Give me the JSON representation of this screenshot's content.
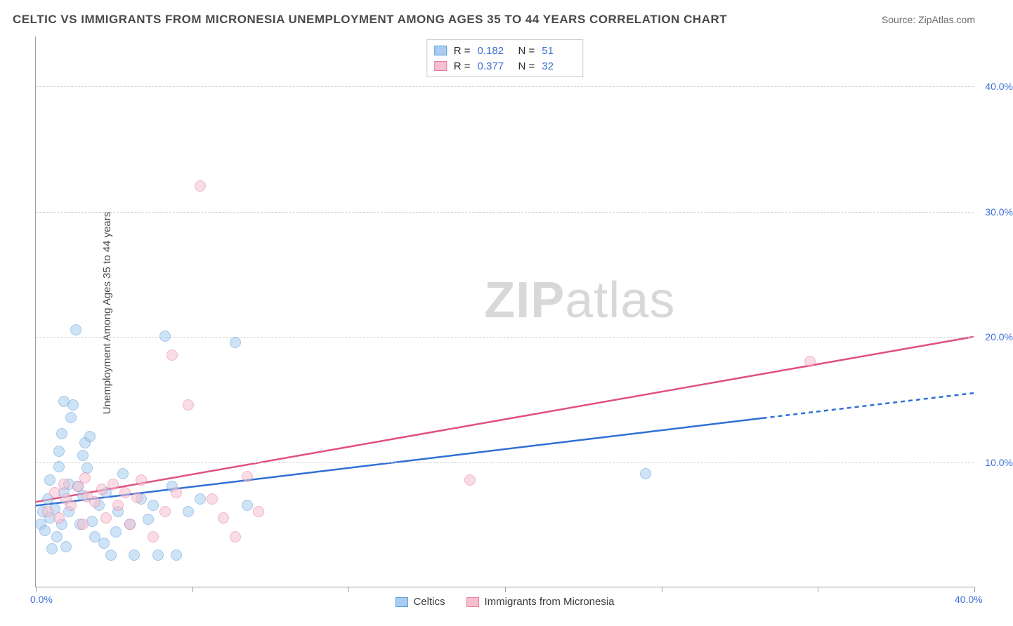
{
  "title": "CELTIC VS IMMIGRANTS FROM MICRONESIA UNEMPLOYMENT AMONG AGES 35 TO 44 YEARS CORRELATION CHART",
  "source": "Source: ZipAtlas.com",
  "ylabel": "Unemployment Among Ages 35 to 44 years",
  "watermark_a": "ZIP",
  "watermark_b": "atlas",
  "chart": {
    "type": "scatter",
    "xlim": [
      0,
      40
    ],
    "ylim": [
      0,
      44
    ],
    "x_tick_positions": [
      0,
      6.67,
      13.33,
      20,
      26.67,
      33.33,
      40
    ],
    "x_labels": {
      "first": "0.0%",
      "last": "40.0%"
    },
    "y_gridlines": [
      10,
      20,
      30,
      40
    ],
    "y_labels": [
      "10.0%",
      "20.0%",
      "30.0%",
      "40.0%"
    ],
    "background_color": "#ffffff",
    "grid_color": "#d0d0d0",
    "axis_color": "#a0a0a0",
    "tick_label_color": "#3d6fd6",
    "marker_radius": 8,
    "marker_opacity": 0.55,
    "series": [
      {
        "name": "Celtics",
        "color_fill": "#a9cdf0",
        "color_stroke": "#5a9bdc",
        "r": 0.182,
        "n": 51,
        "trend": {
          "x1": 0,
          "y1": 6.5,
          "x2": 31,
          "y2": 13.5,
          "dash_from_x": 31,
          "dash_to_x": 40,
          "dash_to_y": 15.5,
          "stroke": "#2f6fd6",
          "width": 2.5
        },
        "points": [
          [
            0.2,
            5.0
          ],
          [
            0.3,
            6.0
          ],
          [
            0.4,
            4.5
          ],
          [
            0.5,
            7.0
          ],
          [
            0.6,
            5.5
          ],
          [
            0.7,
            3.0
          ],
          [
            0.8,
            6.2
          ],
          [
            0.9,
            4.0
          ],
          [
            1.0,
            9.6
          ],
          [
            1.1,
            5.0
          ],
          [
            1.2,
            7.5
          ],
          [
            1.3,
            3.2
          ],
          [
            1.4,
            6.0
          ],
          [
            1.5,
            13.5
          ],
          [
            1.6,
            14.5
          ],
          [
            1.7,
            20.5
          ],
          [
            1.8,
            8.0
          ],
          [
            1.9,
            5.0
          ],
          [
            2.0,
            10.5
          ],
          [
            2.1,
            11.5
          ],
          [
            2.2,
            9.5
          ],
          [
            2.3,
            12.0
          ],
          [
            2.5,
            4.0
          ],
          [
            2.7,
            6.5
          ],
          [
            2.9,
            3.5
          ],
          [
            3.0,
            7.5
          ],
          [
            3.2,
            2.5
          ],
          [
            3.5,
            6.0
          ],
          [
            3.7,
            9.0
          ],
          [
            4.0,
            5.0
          ],
          [
            4.2,
            2.5
          ],
          [
            4.5,
            7.0
          ],
          [
            5.0,
            6.5
          ],
          [
            5.2,
            2.5
          ],
          [
            5.5,
            20.0
          ],
          [
            5.8,
            8.0
          ],
          [
            6.0,
            2.5
          ],
          [
            6.5,
            6.0
          ],
          [
            7.0,
            7.0
          ],
          [
            8.5,
            19.5
          ],
          [
            9.0,
            6.5
          ],
          [
            26.0,
            9.0
          ],
          [
            0.6,
            8.5
          ],
          [
            1.0,
            10.8
          ],
          [
            1.1,
            12.2
          ],
          [
            1.4,
            8.2
          ],
          [
            2.4,
            5.2
          ],
          [
            1.2,
            14.8
          ],
          [
            3.4,
            4.4
          ],
          [
            4.8,
            5.4
          ],
          [
            2.0,
            7.3
          ]
        ]
      },
      {
        "name": "Immigrants from Micronesia",
        "color_fill": "#f6c0cf",
        "color_stroke": "#e77aa0",
        "r": 0.377,
        "n": 32,
        "trend": {
          "x1": 0,
          "y1": 6.8,
          "x2": 40,
          "y2": 20.0,
          "stroke": "#e0517d",
          "width": 2.5
        },
        "points": [
          [
            0.5,
            6.0
          ],
          [
            0.8,
            7.5
          ],
          [
            1.0,
            5.5
          ],
          [
            1.3,
            7.0
          ],
          [
            1.5,
            6.5
          ],
          [
            1.8,
            8.0
          ],
          [
            2.0,
            5.0
          ],
          [
            2.2,
            7.2
          ],
          [
            2.5,
            6.8
          ],
          [
            2.8,
            7.8
          ],
          [
            3.0,
            5.5
          ],
          [
            3.3,
            8.2
          ],
          [
            3.5,
            6.5
          ],
          [
            3.8,
            7.5
          ],
          [
            4.0,
            5.0
          ],
          [
            4.5,
            8.5
          ],
          [
            5.0,
            4.0
          ],
          [
            5.5,
            6.0
          ],
          [
            5.8,
            18.5
          ],
          [
            6.0,
            7.5
          ],
          [
            6.5,
            14.5
          ],
          [
            7.0,
            32.0
          ],
          [
            7.5,
            7.0
          ],
          [
            8.0,
            5.5
          ],
          [
            8.5,
            4.0
          ],
          [
            9.0,
            8.8
          ],
          [
            9.5,
            6.0
          ],
          [
            18.5,
            8.5
          ],
          [
            33.0,
            18.0
          ],
          [
            1.2,
            8.2
          ],
          [
            2.1,
            8.7
          ],
          [
            4.3,
            7.1
          ]
        ]
      }
    ]
  },
  "legend_top_labels": {
    "r": "R  =",
    "n": "N  ="
  },
  "legend_bottom": [
    "Celtics",
    "Immigrants from Micronesia"
  ]
}
